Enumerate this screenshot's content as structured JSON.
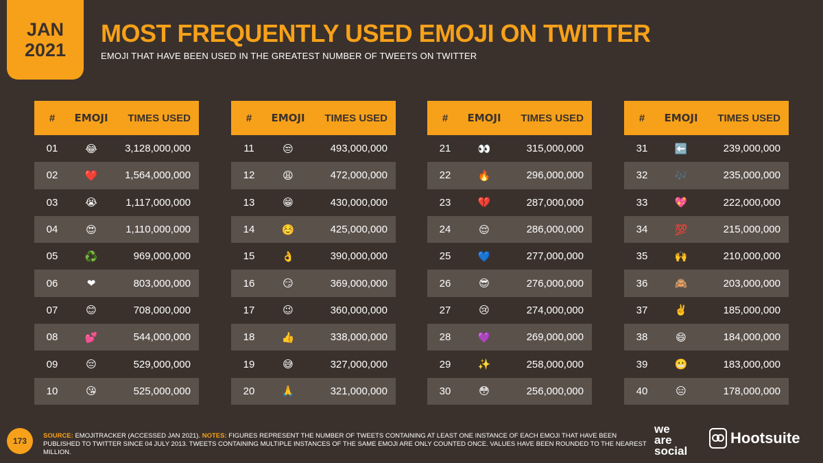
{
  "badge": {
    "month": "JAN",
    "year": "2021"
  },
  "title": "MOST FREQUENTLY USED EMOJI ON TWITTER",
  "subtitle": "EMOJI THAT HAVE BEEN USED IN THE GREATEST NUMBER OF TWEETS ON TWITTER",
  "columns": {
    "num": "#",
    "emoji": "EMOJI",
    "times": "TIMES USED"
  },
  "tables": [
    {
      "rows": [
        {
          "num": "01",
          "emoji": "😂",
          "times": "3,128,000,000"
        },
        {
          "num": "02",
          "emoji": "❤️",
          "times": "1,564,000,000"
        },
        {
          "num": "03",
          "emoji": "😭",
          "times": "1,117,000,000"
        },
        {
          "num": "04",
          "emoji": "😍",
          "times": "1,110,000,000"
        },
        {
          "num": "05",
          "emoji": "♻️",
          "times": "969,000,000"
        },
        {
          "num": "06",
          "emoji": "❤",
          "times": "803,000,000"
        },
        {
          "num": "07",
          "emoji": "😊",
          "times": "708,000,000"
        },
        {
          "num": "08",
          "emoji": "💕",
          "times": "544,000,000"
        },
        {
          "num": "09",
          "emoji": "😔",
          "times": "529,000,000"
        },
        {
          "num": "10",
          "emoji": "😘",
          "times": "525,000,000"
        }
      ]
    },
    {
      "rows": [
        {
          "num": "11",
          "emoji": "😒",
          "times": "493,000,000"
        },
        {
          "num": "12",
          "emoji": "😩",
          "times": "472,000,000"
        },
        {
          "num": "13",
          "emoji": "😁",
          "times": "430,000,000"
        },
        {
          "num": "14",
          "emoji": "☺️",
          "times": "425,000,000"
        },
        {
          "num": "15",
          "emoji": "👌",
          "times": "390,000,000"
        },
        {
          "num": "16",
          "emoji": "😏",
          "times": "369,000,000"
        },
        {
          "num": "17",
          "emoji": "😉",
          "times": "360,000,000"
        },
        {
          "num": "18",
          "emoji": "👍",
          "times": "338,000,000"
        },
        {
          "num": "19",
          "emoji": "😅",
          "times": "327,000,000"
        },
        {
          "num": "20",
          "emoji": "🙏",
          "times": "321,000,000"
        }
      ]
    },
    {
      "rows": [
        {
          "num": "21",
          "emoji": "👀",
          "times": "315,000,000"
        },
        {
          "num": "22",
          "emoji": "🔥",
          "times": "296,000,000"
        },
        {
          "num": "23",
          "emoji": "💔",
          "times": "287,000,000"
        },
        {
          "num": "24",
          "emoji": "😌",
          "times": "286,000,000"
        },
        {
          "num": "25",
          "emoji": "💙",
          "times": "277,000,000"
        },
        {
          "num": "26",
          "emoji": "😎",
          "times": "276,000,000"
        },
        {
          "num": "27",
          "emoji": "😢",
          "times": "274,000,000"
        },
        {
          "num": "28",
          "emoji": "💜",
          "times": "269,000,000"
        },
        {
          "num": "29",
          "emoji": "✨",
          "times": "258,000,000"
        },
        {
          "num": "30",
          "emoji": "😳",
          "times": "256,000,000"
        }
      ]
    },
    {
      "rows": [
        {
          "num": "31",
          "emoji": "⬅️",
          "times": "239,000,000"
        },
        {
          "num": "32",
          "emoji": "🎶",
          "times": "235,000,000"
        },
        {
          "num": "33",
          "emoji": "💖",
          "times": "222,000,000"
        },
        {
          "num": "34",
          "emoji": "💯",
          "times": "215,000,000"
        },
        {
          "num": "35",
          "emoji": "🙌",
          "times": "210,000,000"
        },
        {
          "num": "36",
          "emoji": "🙈",
          "times": "203,000,000"
        },
        {
          "num": "37",
          "emoji": "✌️",
          "times": "185,000,000"
        },
        {
          "num": "38",
          "emoji": "😄",
          "times": "184,000,000"
        },
        {
          "num": "39",
          "emoji": "😬",
          "times": "183,000,000"
        },
        {
          "num": "40",
          "emoji": "😑",
          "times": "178,000,000"
        }
      ]
    }
  ],
  "footer": {
    "page_number": "173",
    "source_label": "SOURCE:",
    "source_text": " EMOJITRACKER (ACCESSED JAN 2021). ",
    "notes_label": "NOTES:",
    "notes_text": " FIGURES REPRESENT THE NUMBER OF TWEETS CONTAINING AT LEAST ONE INSTANCE OF EACH EMOJI THAT HAVE BEEN PUBLISHED TO TWITTER SINCE 04 JULY 2013. TWEETS CONTAINING MULTIPLE INSTANCES OF THE SAME EMOJI ARE ONLY COUNTED ONCE. VALUES HAVE BEEN ROUNDED TO THE NEAREST MILLION.",
    "brand1_line1": "we",
    "brand1_line2": "are",
    "brand1_line3": "social",
    "brand2": "Hootsuite"
  }
}
